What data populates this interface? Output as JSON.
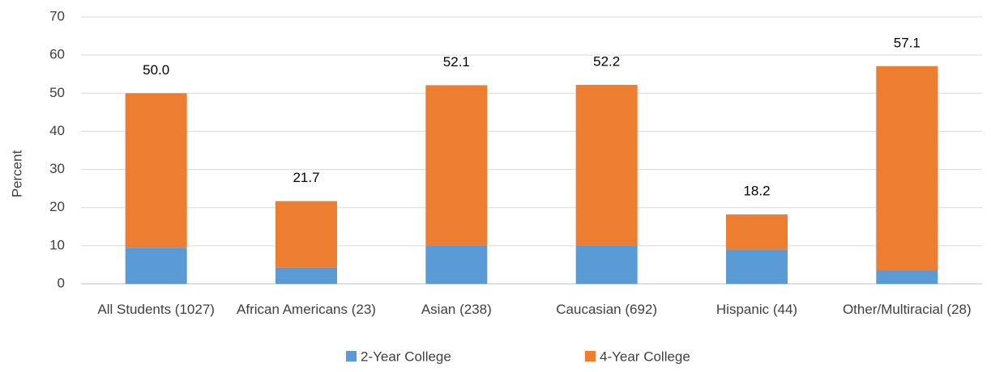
{
  "chart_data": {
    "type": "stacked-bar",
    "y_label": "Percent",
    "categories": [
      "All Students (1027)",
      "African Americans (23)",
      "Asian (238)",
      "Caucasian (692)",
      "Hispanic (44)",
      "Other/Multiracial (28)"
    ],
    "series": [
      {
        "name": "2-Year College",
        "color": "#5b9bd5",
        "values": [
          9.5,
          4.3,
          10.0,
          10.0,
          9.0,
          3.5
        ]
      },
      {
        "name": "4-Year College",
        "color": "#ed7d31",
        "values": [
          40.5,
          17.4,
          42.1,
          42.2,
          9.2,
          53.6
        ]
      }
    ],
    "totals": [
      50.0,
      21.7,
      52.1,
      52.2,
      18.2,
      57.1
    ],
    "total_labels": [
      "50.0",
      "21.7",
      "52.1",
      "52.2",
      "18.2",
      "57.1"
    ],
    "ylim": [
      0,
      70
    ],
    "yticks": [
      0,
      10,
      20,
      30,
      40,
      50,
      60,
      70
    ],
    "grid": true
  }
}
